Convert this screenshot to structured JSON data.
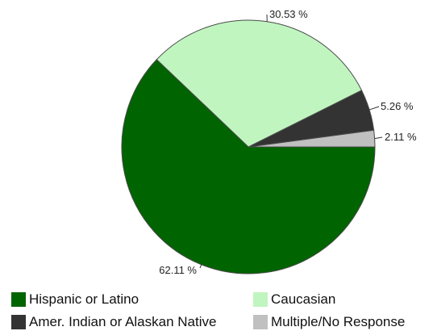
{
  "chart_data": {
    "type": "pie",
    "categories": [
      "Hispanic or Latino",
      "Caucasian",
      "Amer. Indian or Alaskan Native",
      "Multiple/No Response"
    ],
    "values": [
      62.11,
      30.53,
      5.26,
      2.11
    ],
    "data_labels": [
      "62.11 %",
      "30.53 %",
      "5.26 %",
      "2.11 %"
    ],
    "colors": [
      "#006400",
      "#c0f5c0",
      "#333333",
      "#c0c0c0"
    ],
    "legend_position": "bottom",
    "start_angle": "3 o'clock",
    "direction": "counter-clockwise"
  }
}
